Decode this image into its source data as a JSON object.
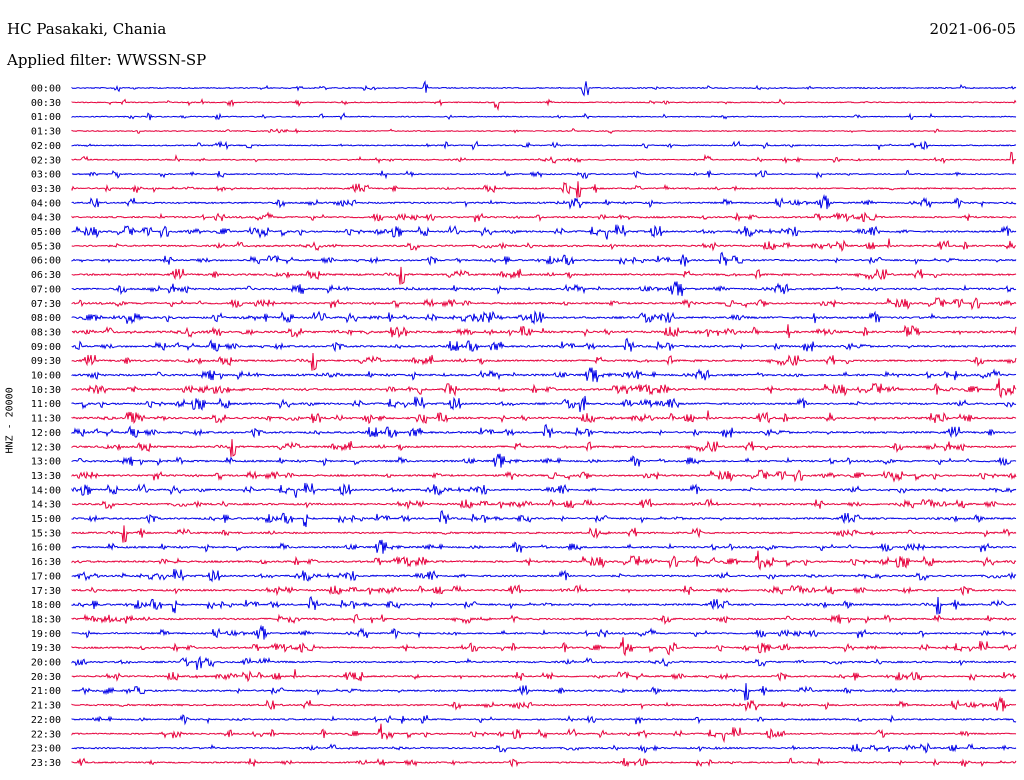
{
  "header": {
    "station": "HC Pasakaki, Chania",
    "date": "2021-06-05",
    "filter_text": "Applied filter: WWSSN-SP",
    "channel_label": "HNZ - 20000"
  },
  "chart_data": {
    "type": "line",
    "title": "HC Pasakaki, Chania",
    "subtitle": "Applied filter: WWSSN-SP",
    "ylabel": "HNZ - 20000",
    "grid": false,
    "row_colors": [
      "#0000e6",
      "#e6003c"
    ],
    "rows": [
      {
        "label": "00:00",
        "activity": 0.15
      },
      {
        "label": "00:30",
        "activity": 0.1
      },
      {
        "label": "01:00",
        "activity": 0.08
      },
      {
        "label": "01:30",
        "activity": 0.08
      },
      {
        "label": "02:00",
        "activity": 0.15
      },
      {
        "label": "02:30",
        "activity": 0.18
      },
      {
        "label": "03:00",
        "activity": 0.18
      },
      {
        "label": "03:30",
        "activity": 0.35
      },
      {
        "label": "04:00",
        "activity": 0.45
      },
      {
        "label": "04:30",
        "activity": 0.45
      },
      {
        "label": "05:00",
        "activity": 0.55
      },
      {
        "label": "05:30",
        "activity": 0.5
      },
      {
        "label": "06:00",
        "activity": 0.5
      },
      {
        "label": "06:30",
        "activity": 0.6
      },
      {
        "label": "07:00",
        "activity": 0.6
      },
      {
        "label": "07:30",
        "activity": 0.55
      },
      {
        "label": "08:00",
        "activity": 0.7
      },
      {
        "label": "08:30",
        "activity": 0.75
      },
      {
        "label": "09:00",
        "activity": 0.6
      },
      {
        "label": "09:30",
        "activity": 0.6
      },
      {
        "label": "10:00",
        "activity": 0.65
      },
      {
        "label": "10:30",
        "activity": 0.65
      },
      {
        "label": "11:00",
        "activity": 0.6
      },
      {
        "label": "11:30",
        "activity": 0.65
      },
      {
        "label": "12:00",
        "activity": 0.6
      },
      {
        "label": "12:30",
        "activity": 0.6
      },
      {
        "label": "13:00",
        "activity": 0.55
      },
      {
        "label": "13:30",
        "activity": 0.55
      },
      {
        "label": "14:00",
        "activity": 0.55
      },
      {
        "label": "14:30",
        "activity": 0.55
      },
      {
        "label": "15:00",
        "activity": 0.55
      },
      {
        "label": "15:30",
        "activity": 0.5
      },
      {
        "label": "16:00",
        "activity": 0.55
      },
      {
        "label": "16:30",
        "activity": 0.6
      },
      {
        "label": "17:00",
        "activity": 0.55
      },
      {
        "label": "17:30",
        "activity": 0.55
      },
      {
        "label": "18:00",
        "activity": 0.55
      },
      {
        "label": "18:30",
        "activity": 0.55
      },
      {
        "label": "19:00",
        "activity": 0.45
      },
      {
        "label": "19:30",
        "activity": 0.45
      },
      {
        "label": "20:00",
        "activity": 0.45
      },
      {
        "label": "20:30",
        "activity": 0.45
      },
      {
        "label": "21:00",
        "activity": 0.5
      },
      {
        "label": "21:30",
        "activity": 0.45
      },
      {
        "label": "22:00",
        "activity": 0.4
      },
      {
        "label": "22:30",
        "activity": 0.35
      },
      {
        "label": "23:00",
        "activity": 0.4
      },
      {
        "label": "23:30",
        "activity": 0.35
      }
    ]
  }
}
